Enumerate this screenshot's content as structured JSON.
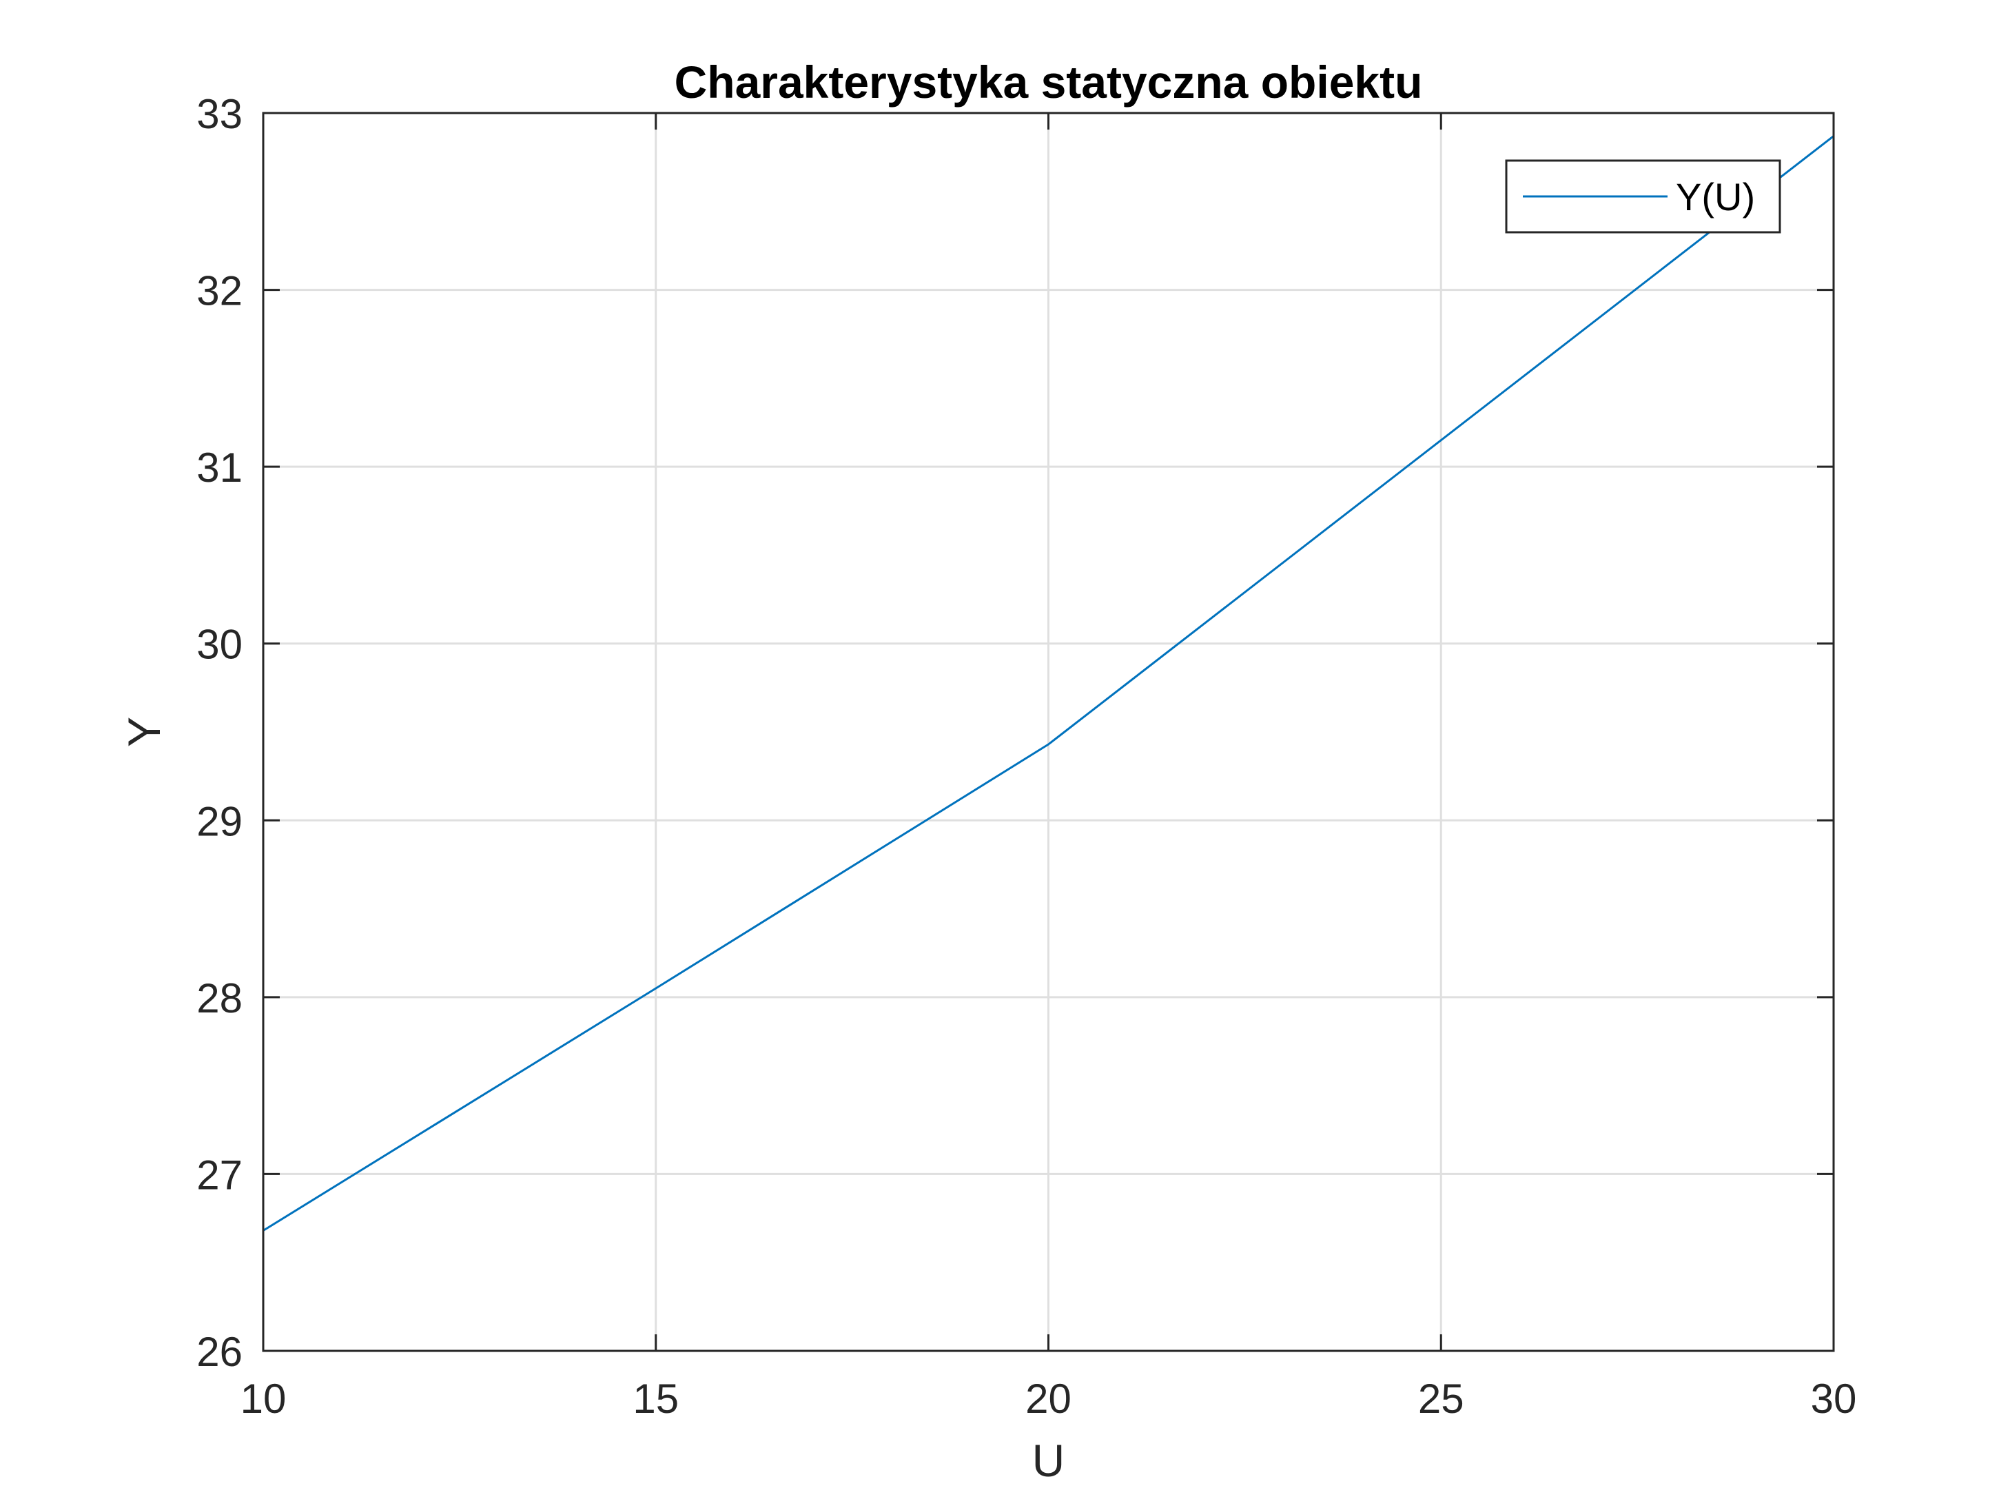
{
  "chart_data": {
    "type": "line",
    "title": "Charakterystyka statyczna obiektu",
    "xlabel": "U",
    "ylabel": "Y",
    "xlim": [
      10,
      30
    ],
    "ylim": [
      26,
      33
    ],
    "xticks": [
      10,
      15,
      20,
      25,
      30
    ],
    "yticks": [
      26,
      27,
      28,
      29,
      30,
      31,
      32,
      33
    ],
    "xtick_labels": [
      "10",
      "15",
      "20",
      "25",
      "30"
    ],
    "ytick_labels": [
      "26",
      "27",
      "28",
      "29",
      "30",
      "31",
      "32",
      "33"
    ],
    "grid": true,
    "legend_position": "top-right",
    "series": [
      {
        "name": "Y(U)",
        "color": "#0072BD",
        "x": [
          10,
          15,
          20,
          25,
          30
        ],
        "y": [
          26.68,
          28.05,
          29.43,
          31.15,
          32.87
        ]
      }
    ]
  }
}
